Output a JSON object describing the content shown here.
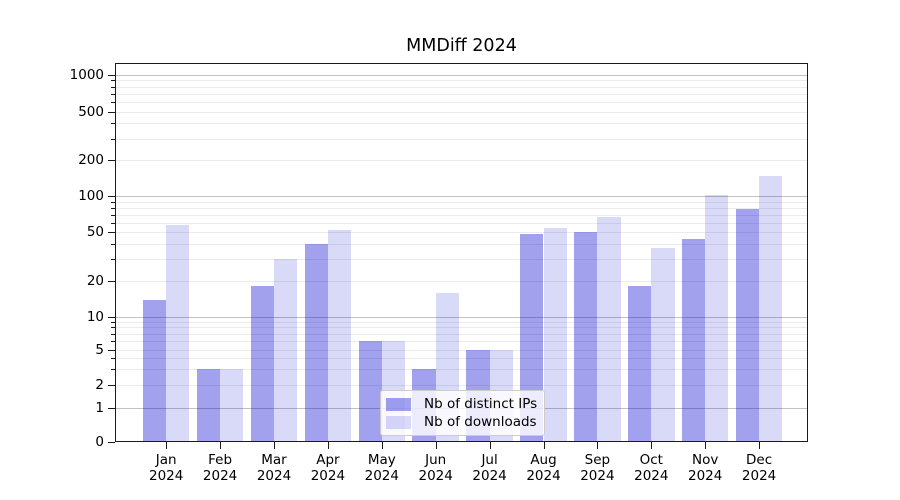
{
  "chart_data": {
    "type": "bar",
    "title": "MMDiff 2024",
    "categories": [
      "Jan",
      "Feb",
      "Mar",
      "Apr",
      "May",
      "Jun",
      "Jul",
      "Aug",
      "Sep",
      "Oct",
      "Nov",
      "Dec"
    ],
    "category_year": "2024",
    "series": [
      {
        "name": "Nb of distinct IPs",
        "color_hex": "#a2a2ee",
        "fill": "rgba(0,0,208,0.37)",
        "values": [
          14,
          3,
          18,
          40,
          6,
          3,
          5,
          48,
          50,
          18,
          44,
          78
        ]
      },
      {
        "name": "Nb of downloads",
        "color_hex": "#d9d9f8",
        "fill": "rgba(0,0,208,0.15)",
        "values": [
          58,
          3,
          30,
          52,
          6,
          16,
          5,
          54,
          67,
          37,
          102,
          148
        ]
      }
    ],
    "y_axis": {
      "scale": "symlog",
      "tick_labels": [
        "0",
        "1",
        "2",
        "5",
        "10",
        "20",
        "50",
        "100",
        "200",
        "500",
        "1000"
      ],
      "ticks": [
        0,
        1,
        2,
        5,
        10,
        20,
        50,
        100,
        200,
        500,
        1000
      ],
      "minor_ticks": [
        3,
        4,
        6,
        7,
        8,
        9,
        30,
        40,
        60,
        70,
        80,
        90,
        300,
        400,
        600,
        700,
        800,
        900
      ],
      "major_gridlines": [
        1,
        10,
        100,
        1000
      ],
      "range": [
        0,
        1250
      ]
    },
    "x_axis": {
      "label_format": "month-over-year"
    },
    "grid": true,
    "legend_position": "lower center"
  }
}
